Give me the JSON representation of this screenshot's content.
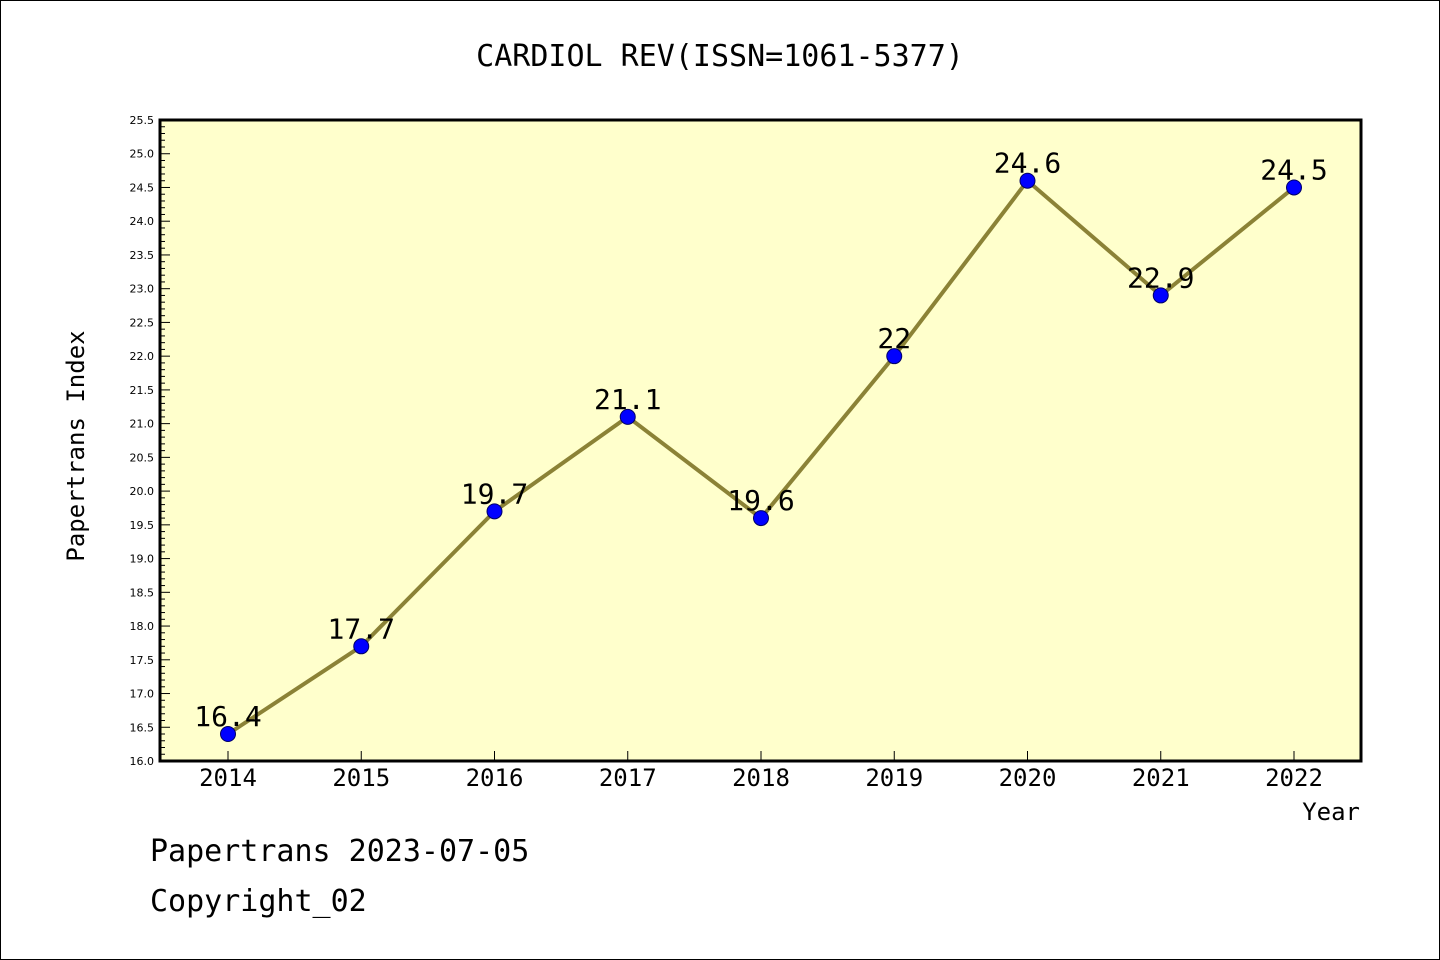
{
  "chart_data": {
    "type": "line",
    "title": "CARDIOL REV(ISSN=1061-5377)",
    "xlabel": "Year",
    "ylabel": "Papertrans Index",
    "categories": [
      "2014",
      "2015",
      "2016",
      "2017",
      "2018",
      "2019",
      "2020",
      "2021",
      "2022"
    ],
    "series": [
      {
        "values": [
          16.4,
          17.7,
          19.7,
          21.1,
          19.6,
          22.0,
          24.6,
          22.9,
          24.5
        ],
        "labels": [
          "16.4",
          "17.7",
          "19.7",
          "21.1",
          "19.6",
          "22",
          "24.6",
          "22.9",
          "24.5"
        ]
      }
    ],
    "ylim": [
      16.0,
      25.5
    ],
    "ytick_step": 0.5,
    "yminor_step": 0.1,
    "grid": false,
    "colors": {
      "plot_background": "#ffffcc",
      "line": "#8b8236",
      "marker": "#0000ff",
      "axis": "#000000"
    }
  },
  "footer": {
    "line1": "Papertrans 2023-07-05",
    "line2": "Copyright_02"
  }
}
